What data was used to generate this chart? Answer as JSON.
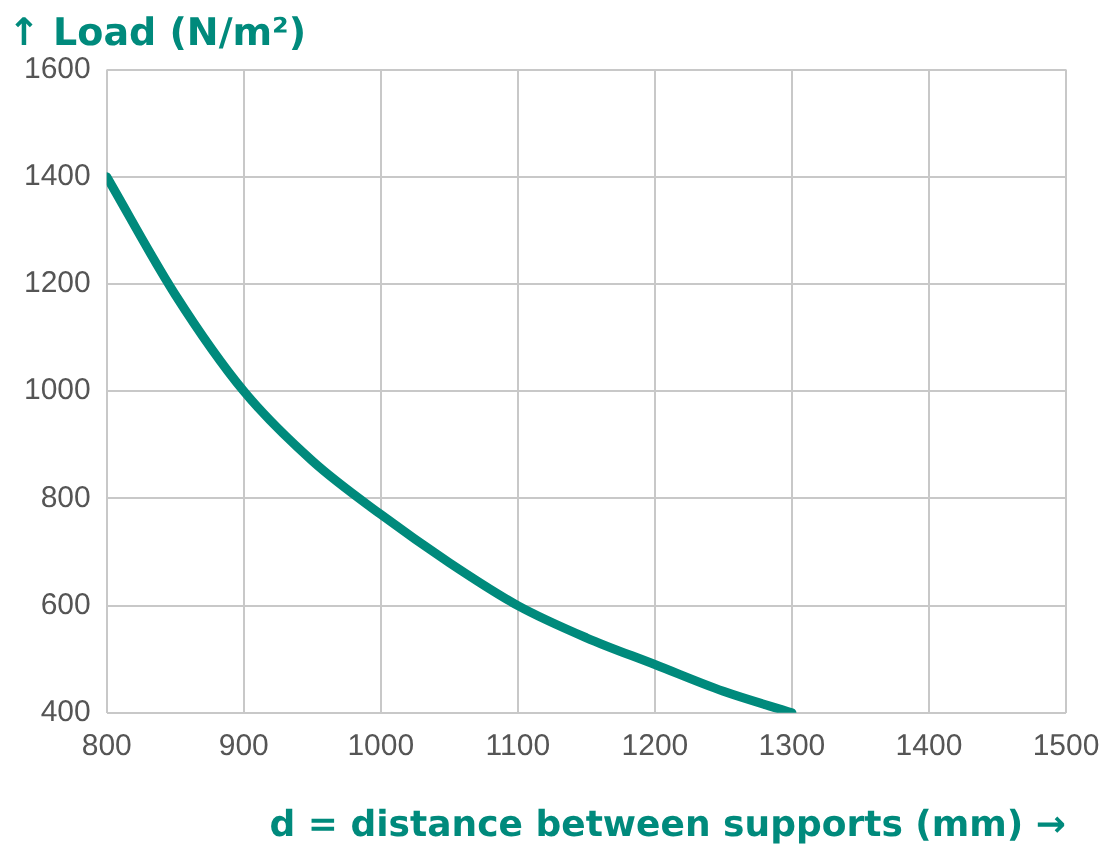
{
  "chart_data": {
    "type": "line",
    "title": "↑ Load (N/m²)",
    "xlabel": "d = distance between supports (mm) →",
    "x": [
      800,
      850,
      900,
      950,
      1000,
      1050,
      1100,
      1150,
      1200,
      1250,
      1300
    ],
    "series": [
      {
        "color": "#008a7c",
        "values": [
          1400,
          1180,
          1000,
          870,
          770,
          680,
          600,
          540,
          490,
          440,
          400
        ]
      }
    ],
    "xlim": [
      800,
      1500
    ],
    "xticks": [
      800,
      900,
      1000,
      1100,
      1200,
      1300,
      1400,
      1500
    ],
    "ylim": [
      400,
      1600
    ],
    "yticks": [
      400,
      600,
      800,
      1000,
      1200,
      1400,
      1600
    ],
    "grid": true,
    "legend": false,
    "marker": "none",
    "line_style": "solid"
  }
}
